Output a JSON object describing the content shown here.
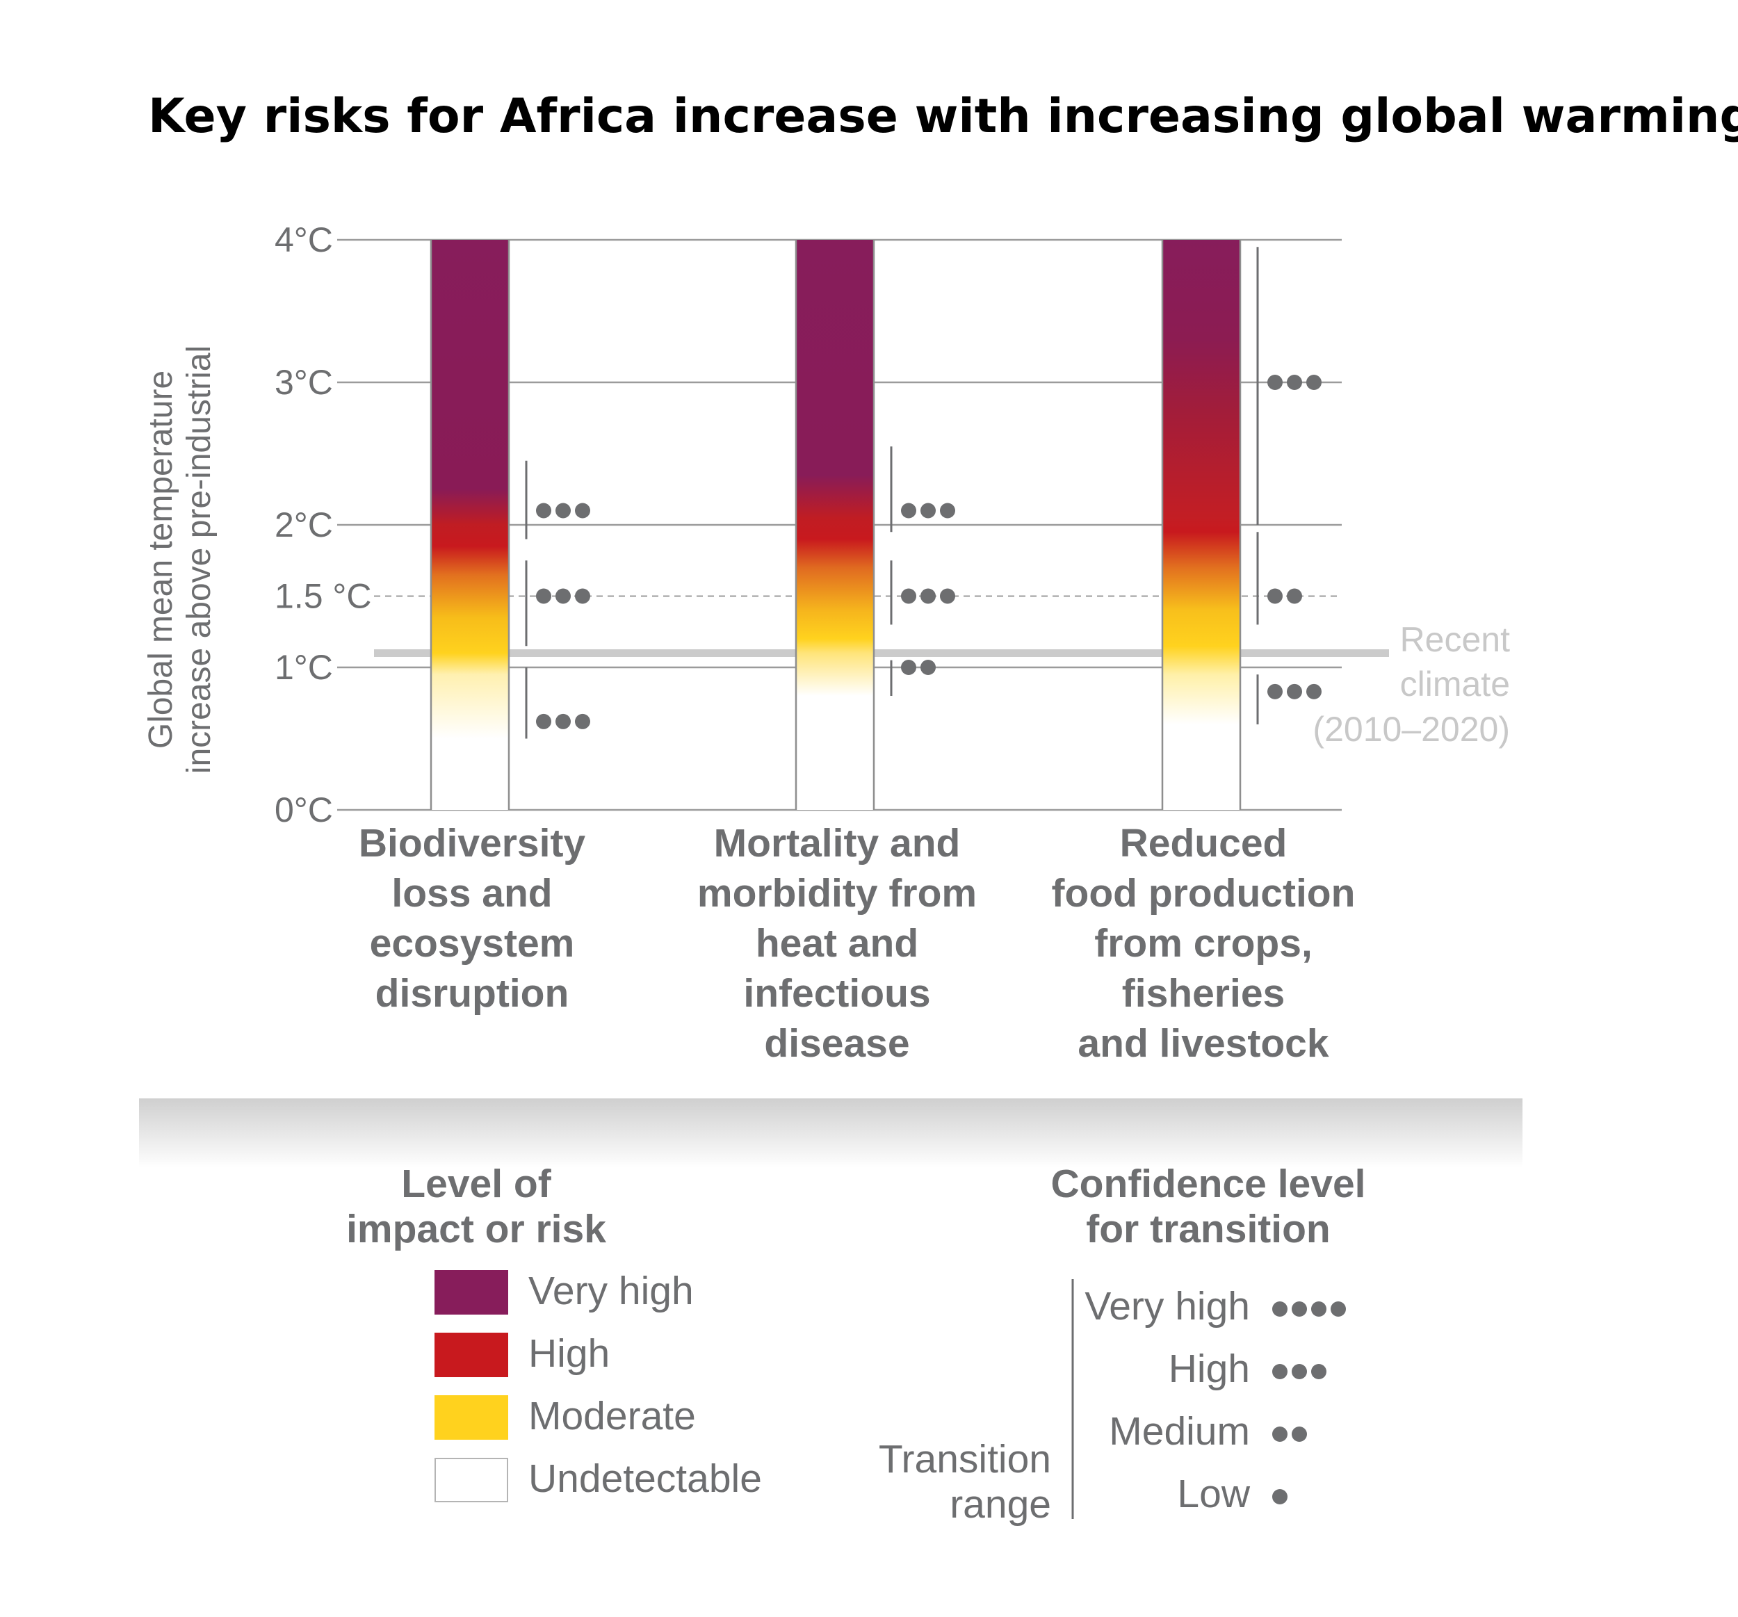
{
  "title": "Key risks for Africa increase with increasing global warming",
  "chart_data": {
    "type": "bar",
    "title": "Key risks for Africa increase with increasing global warming",
    "ylabel": [
      "Global mean temperature",
      "increase above pre-industrial"
    ],
    "ylim": [
      0,
      4
    ],
    "yticks": [
      {
        "value": 0,
        "label": "0°C",
        "dashed": false
      },
      {
        "value": 1,
        "label": "1°C",
        "dashed": false
      },
      {
        "value": 1.5,
        "label": "1.5 °C",
        "dashed": true
      },
      {
        "value": 2,
        "label": "2°C",
        "dashed": false
      },
      {
        "value": 3,
        "label": "3°C",
        "dashed": false
      },
      {
        "value": 4,
        "label": "4°C",
        "dashed": false
      }
    ],
    "recent_climate": {
      "value": 1.1,
      "label": [
        "Recent",
        "climate",
        "(2010–2020)"
      ]
    },
    "categories": [
      {
        "label": [
          "Biodiversity",
          "loss and",
          "ecosystem",
          "disruption"
        ],
        "gradient": [
          {
            "temp": 0.5,
            "color": "#ffffff"
          },
          {
            "temp": 0.95,
            "color": "#fff0b0"
          },
          {
            "temp": 1.1,
            "color": "#ffd21e"
          },
          {
            "temp": 1.35,
            "color": "#f7bd1a"
          },
          {
            "temp": 1.65,
            "color": "#e2701f"
          },
          {
            "temp": 1.85,
            "color": "#c8191e"
          },
          {
            "temp": 2.0,
            "color": "#c01d23"
          },
          {
            "temp": 2.25,
            "color": "#891b56"
          },
          {
            "temp": 4.0,
            "color": "#871d5b"
          }
        ],
        "transitions": [
          {
            "from": 0.5,
            "to": 1.0,
            "confidence": 3,
            "dots_at": 0.62
          },
          {
            "from": 1.15,
            "to": 1.75,
            "confidence": 3,
            "dots_at": 1.5
          },
          {
            "from": 1.9,
            "to": 2.45,
            "confidence": 3,
            "dots_at": 2.1
          }
        ]
      },
      {
        "label": [
          "Mortality and",
          "morbidity from",
          "heat and",
          "infectious",
          "disease"
        ],
        "gradient": [
          {
            "temp": 0.8,
            "color": "#ffffff"
          },
          {
            "temp": 1.1,
            "color": "#ffe47a"
          },
          {
            "temp": 1.2,
            "color": "#ffd21e"
          },
          {
            "temp": 1.4,
            "color": "#f6b51d"
          },
          {
            "temp": 1.7,
            "color": "#e06a20"
          },
          {
            "temp": 1.9,
            "color": "#c8191e"
          },
          {
            "temp": 2.05,
            "color": "#c01d23"
          },
          {
            "temp": 2.35,
            "color": "#881c58"
          },
          {
            "temp": 4.0,
            "color": "#871d5b"
          }
        ],
        "transitions": [
          {
            "from": 0.8,
            "to": 1.05,
            "confidence": 2,
            "dots_at": 1.0
          },
          {
            "from": 1.3,
            "to": 1.75,
            "confidence": 3,
            "dots_at": 1.5
          },
          {
            "from": 1.95,
            "to": 2.55,
            "confidence": 3,
            "dots_at": 2.1
          }
        ]
      },
      {
        "label": [
          "Reduced",
          "food production",
          "from crops,",
          "fisheries",
          "and livestock"
        ],
        "gradient": [
          {
            "temp": 0.6,
            "color": "#ffffff"
          },
          {
            "temp": 0.95,
            "color": "#fff0a8"
          },
          {
            "temp": 1.15,
            "color": "#ffd21e"
          },
          {
            "temp": 1.4,
            "color": "#f8c01c"
          },
          {
            "temp": 1.7,
            "color": "#e2701f"
          },
          {
            "temp": 1.95,
            "color": "#c8191e"
          },
          {
            "temp": 2.05,
            "color": "#c31e24"
          },
          {
            "temp": 2.8,
            "color": "#a21d3a"
          },
          {
            "temp": 3.3,
            "color": "#8c1c52"
          },
          {
            "temp": 4.0,
            "color": "#871d5b"
          }
        ],
        "transitions": [
          {
            "from": 0.6,
            "to": 0.95,
            "confidence": 3,
            "dots_at": 0.83
          },
          {
            "from": 1.3,
            "to": 1.95,
            "confidence": 2,
            "dots_at": 1.5
          },
          {
            "from": 2.0,
            "to": 3.95,
            "confidence": 3,
            "dots_at": 3.0
          }
        ]
      }
    ]
  },
  "legend_risk": {
    "title": [
      "Level of",
      "impact or risk"
    ],
    "items": [
      {
        "label": "Very high",
        "color": "#871d5b"
      },
      {
        "label": "High",
        "color": "#c8191e"
      },
      {
        "label": "Moderate",
        "color": "#ffd21e"
      },
      {
        "label": "Undetectable",
        "color": "#ffffff"
      }
    ]
  },
  "legend_confidence": {
    "title": [
      "Confidence level",
      "for transition"
    ],
    "transition_label": [
      "Transition",
      "range"
    ],
    "items": [
      {
        "label": "Very high",
        "dots": 4
      },
      {
        "label": "High",
        "dots": 3
      },
      {
        "label": "Medium",
        "dots": 2
      },
      {
        "label": "Low",
        "dots": 1
      }
    ]
  }
}
